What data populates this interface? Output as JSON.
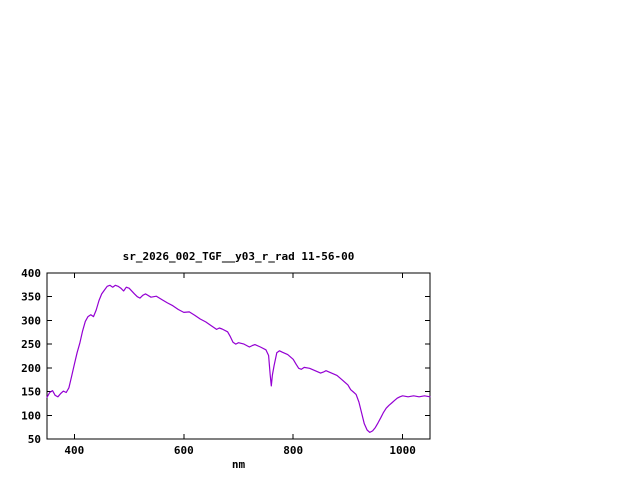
{
  "page": {
    "background_color": "#ffffff"
  },
  "chart_data": {
    "type": "line",
    "title": "sr_2026_002_TGF__y03_r_rad 11-56-00",
    "xlabel": "nm",
    "ylabel": "",
    "xlim": [
      350,
      1050
    ],
    "ylim": [
      50,
      400
    ],
    "xticks": [
      400,
      600,
      800,
      1000
    ],
    "yticks": [
      50,
      100,
      150,
      200,
      250,
      300,
      350,
      400
    ],
    "grid": false,
    "legend": "none",
    "line_color": "#9400d3",
    "border_color": "#000000",
    "series": [
      {
        "name": "sr_2026_002_TGF__y03_r_rad",
        "x": [
          350,
          355,
          360,
          365,
          370,
          375,
          380,
          385,
          390,
          395,
          400,
          405,
          410,
          415,
          420,
          425,
          430,
          435,
          440,
          445,
          450,
          455,
          460,
          465,
          470,
          475,
          480,
          485,
          490,
          495,
          500,
          510,
          515,
          520,
          525,
          530,
          540,
          550,
          560,
          570,
          580,
          590,
          600,
          610,
          620,
          630,
          640,
          650,
          660,
          665,
          670,
          680,
          685,
          690,
          695,
          700,
          710,
          720,
          725,
          730,
          740,
          750,
          755,
          758,
          760,
          762,
          765,
          770,
          775,
          780,
          790,
          800,
          805,
          810,
          815,
          820,
          830,
          840,
          850,
          855,
          860,
          870,
          880,
          890,
          900,
          905,
          910,
          915,
          920,
          925,
          930,
          935,
          940,
          945,
          950,
          955,
          960,
          965,
          970,
          975,
          980,
          985,
          990,
          995,
          1000,
          1010,
          1020,
          1030,
          1040,
          1050
        ],
        "y": [
          138,
          148,
          152,
          142,
          139,
          146,
          151,
          148,
          158,
          182,
          208,
          232,
          252,
          278,
          298,
          308,
          312,
          308,
          322,
          342,
          356,
          364,
          372,
          374,
          370,
          374,
          372,
          368,
          362,
          370,
          368,
          356,
          350,
          347,
          353,
          356,
          349,
          351,
          344,
          337,
          331,
          323,
          317,
          318,
          311,
          303,
          297,
          289,
          281,
          284,
          282,
          276,
          266,
          254,
          250,
          253,
          250,
          244,
          247,
          249,
          244,
          238,
          226,
          185,
          162,
          185,
          205,
          232,
          236,
          233,
          228,
          218,
          208,
          199,
          197,
          201,
          199,
          194,
          189,
          191,
          194,
          189,
          184,
          174,
          164,
          154,
          149,
          144,
          128,
          105,
          82,
          69,
          64,
          67,
          74,
          84,
          95,
          106,
          115,
          121,
          126,
          131,
          136,
          139,
          141,
          139,
          141,
          139,
          141,
          139
        ]
      }
    ]
  }
}
